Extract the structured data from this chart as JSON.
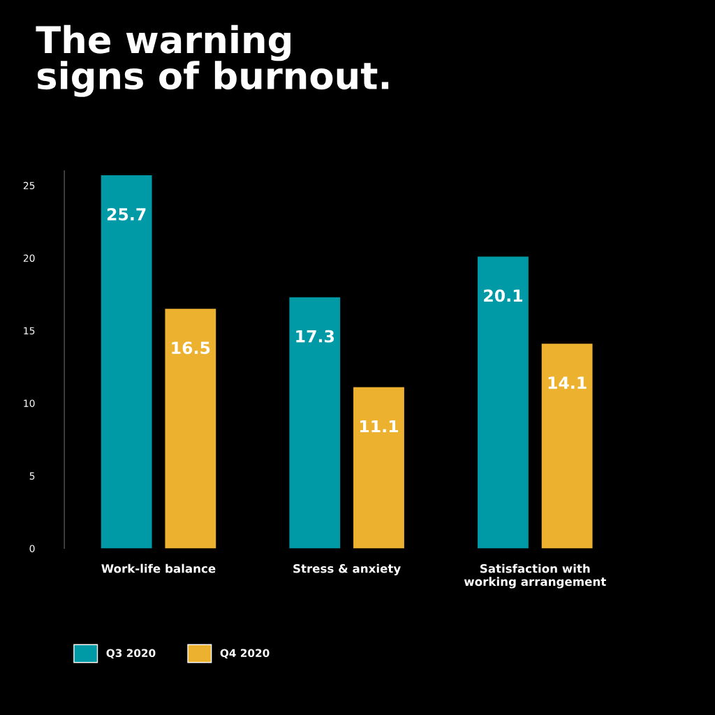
{
  "chart_data": {
    "type": "bar",
    "title": "The warning\nsigns of burnout.",
    "categories": [
      "Work-life balance",
      "Stress & anxiety",
      "Satisfaction with\nworking arrangement"
    ],
    "series": [
      {
        "name": "Q3 2020",
        "color": "#0099a6",
        "values": [
          25.7,
          17.3,
          20.1
        ]
      },
      {
        "name": "Q4 2020",
        "color": "#ecb12f",
        "values": [
          16.5,
          11.1,
          14.1
        ]
      }
    ],
    "ylim": [
      0,
      26
    ],
    "yticks": [
      0,
      5,
      10,
      15,
      20,
      25
    ],
    "grid": false,
    "legend": "bottom left",
    "data_labels": true
  }
}
